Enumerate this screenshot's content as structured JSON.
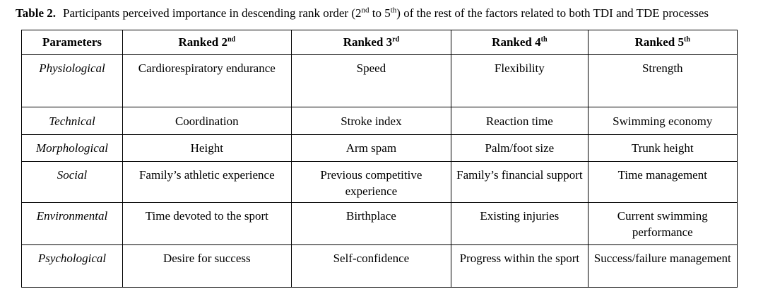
{
  "caption": {
    "label": "Table 2.",
    "text_1": "Participants perceived importance in descending rank order (2",
    "sup_1": "nd",
    "text_2": " to 5",
    "sup_2": "th",
    "text_3": ") of the rest of the factors related to both TDI and TDE processes"
  },
  "table": {
    "headers": [
      {
        "text": "Parameters",
        "sup": ""
      },
      {
        "text": "Ranked 2",
        "sup": "nd"
      },
      {
        "text": "Ranked 3",
        "sup": "rd"
      },
      {
        "text": "Ranked 4",
        "sup": "th"
      },
      {
        "text": "Ranked 5",
        "sup": "th"
      }
    ],
    "rows": [
      [
        "Physiological",
        "Cardiorespiratory endurance",
        "Speed",
        "Flexibility",
        "Strength"
      ],
      [
        "Technical",
        "Coordination",
        "Stroke index",
        "Reaction time",
        "Swimming economy"
      ],
      [
        "Morphological",
        "Height",
        "Arm spam",
        "Palm/foot size",
        "Trunk height"
      ],
      [
        "Social",
        "Family’s athletic experience",
        "Previous competitive experience",
        "Family’s financial support",
        "Time management"
      ],
      [
        "Environmental",
        "Time devoted to the sport",
        "Birthplace",
        "Existing injuries",
        "Current swimming performance"
      ],
      [
        "Psychological",
        "Desire for success",
        "Self-confidence",
        "Progress within the sport",
        "Success/failure management"
      ]
    ]
  }
}
